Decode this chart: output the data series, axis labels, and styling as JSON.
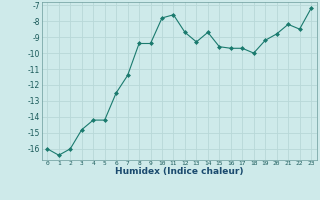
{
  "x": [
    0,
    1,
    2,
    3,
    4,
    5,
    6,
    7,
    8,
    9,
    10,
    11,
    12,
    13,
    14,
    15,
    16,
    17,
    18,
    19,
    20,
    21,
    22,
    23
  ],
  "y": [
    -16.0,
    -16.4,
    -16.0,
    -14.8,
    -14.2,
    -14.2,
    -12.5,
    -11.4,
    -9.4,
    -9.4,
    -7.8,
    -7.6,
    -8.7,
    -9.3,
    -8.7,
    -9.6,
    -9.7,
    -9.7,
    -10.0,
    -9.2,
    -8.8,
    -8.2,
    -8.5,
    -7.2
  ],
  "xlim": [
    -0.5,
    23.5
  ],
  "ylim": [
    -16.7,
    -6.8
  ],
  "yticks": [
    -7,
    -8,
    -9,
    -10,
    -11,
    -12,
    -13,
    -14,
    -15,
    -16
  ],
  "xticks": [
    0,
    1,
    2,
    3,
    4,
    5,
    6,
    7,
    8,
    9,
    10,
    11,
    12,
    13,
    14,
    15,
    16,
    17,
    18,
    19,
    20,
    21,
    22,
    23
  ],
  "xlabel": "Humidex (Indice chaleur)",
  "line_color": "#1a7a6e",
  "marker": "D",
  "marker_size": 2.0,
  "bg_color": "#ceeaea",
  "grid_color": "#b8d8d8",
  "tick_color": "#1a5a5a",
  "label_color": "#1a4a6e"
}
